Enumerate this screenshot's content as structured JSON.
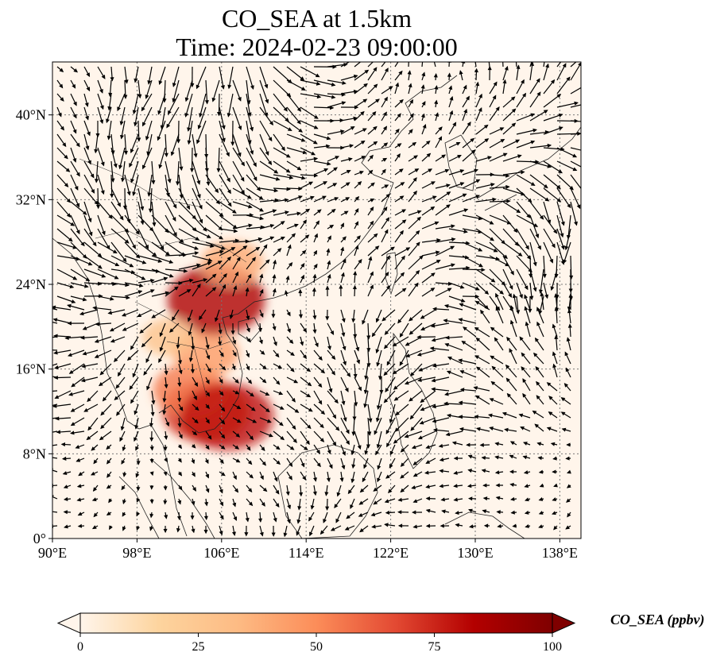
{
  "title": {
    "line1": "CO_SEA at 1.5km",
    "line2": "Time: 2024-02-23 09:00:00"
  },
  "map": {
    "lon_range": [
      90,
      140
    ],
    "lat_range": [
      0,
      45
    ],
    "lon_ticks": [
      90,
      98,
      106,
      114,
      122,
      130,
      138
    ],
    "lat_ticks": [
      0,
      8,
      16,
      24,
      32,
      40
    ],
    "lon_tick_labels": [
      "90°E",
      "98°E",
      "106°E",
      "114°E",
      "122°E",
      "130°E",
      "138°E"
    ],
    "lat_tick_labels": [
      "0°",
      "8°N",
      "16°N",
      "24°N",
      "32°N",
      "40°N"
    ],
    "gridlines": true,
    "background_color": "#fff5eb",
    "overlay": "wind-vectors",
    "plumes": [
      {
        "lon": 104.5,
        "lat": 12.0,
        "value": 72
      },
      {
        "lon": 103.0,
        "lat": 14.0,
        "value": 55
      },
      {
        "lon": 106.5,
        "lat": 11.5,
        "value": 80
      },
      {
        "lon": 104.5,
        "lat": 17.5,
        "value": 45
      },
      {
        "lon": 105.5,
        "lat": 22.5,
        "value": 85
      },
      {
        "lon": 107.0,
        "lat": 26.0,
        "value": 40
      },
      {
        "lon": 101.0,
        "lat": 19.0,
        "value": 28
      }
    ]
  },
  "colorbar": {
    "label": "CO_SEA (ppbv)",
    "min": 0,
    "max": 100,
    "ticks": [
      "0",
      "25",
      "50",
      "75",
      "100"
    ],
    "extend": "both",
    "colormap": [
      "#fff5eb",
      "#fdd49e",
      "#fdbb84",
      "#fc8d59",
      "#e34a33",
      "#b30000",
      "#7f0000"
    ]
  }
}
